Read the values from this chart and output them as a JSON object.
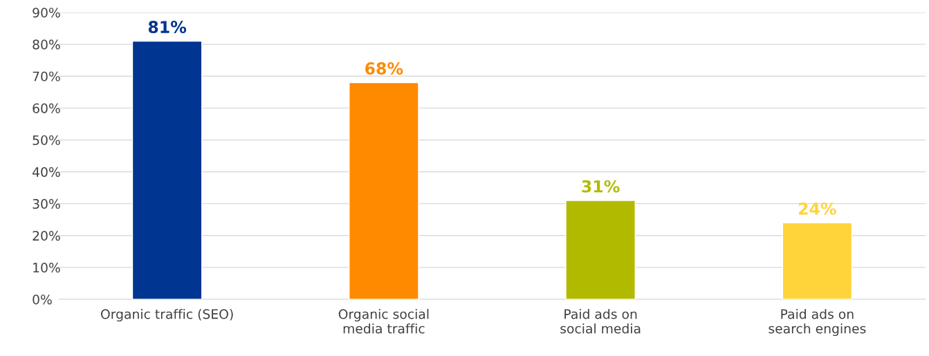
{
  "chart_data": {
    "type": "bar",
    "categories": [
      "Organic traffic (SEO)",
      "Organic social\nmedia traffic",
      "Paid ads on\nsocial media",
      "Paid ads on\nsearch engines"
    ],
    "values": [
      81,
      68,
      31,
      24
    ],
    "colors": [
      "#003591",
      "#ff8a00",
      "#b2ba00",
      "#ffd43a"
    ],
    "value_labels": [
      "81%",
      "68%",
      "31%",
      "24%"
    ],
    "ylim": [
      0,
      90
    ],
    "yticks": [
      {
        "value": 0,
        "label": "0%"
      },
      {
        "value": 10,
        "label": "10%"
      },
      {
        "value": 20,
        "label": "20%"
      },
      {
        "value": 30,
        "label": "30%"
      },
      {
        "value": 40,
        "label": "40%"
      },
      {
        "value": 50,
        "label": "50%"
      },
      {
        "value": 60,
        "label": "60%"
      },
      {
        "value": 70,
        "label": "70%"
      },
      {
        "value": 80,
        "label": "80%"
      },
      {
        "value": 90,
        "label": "90%"
      }
    ],
    "grid": "y"
  }
}
